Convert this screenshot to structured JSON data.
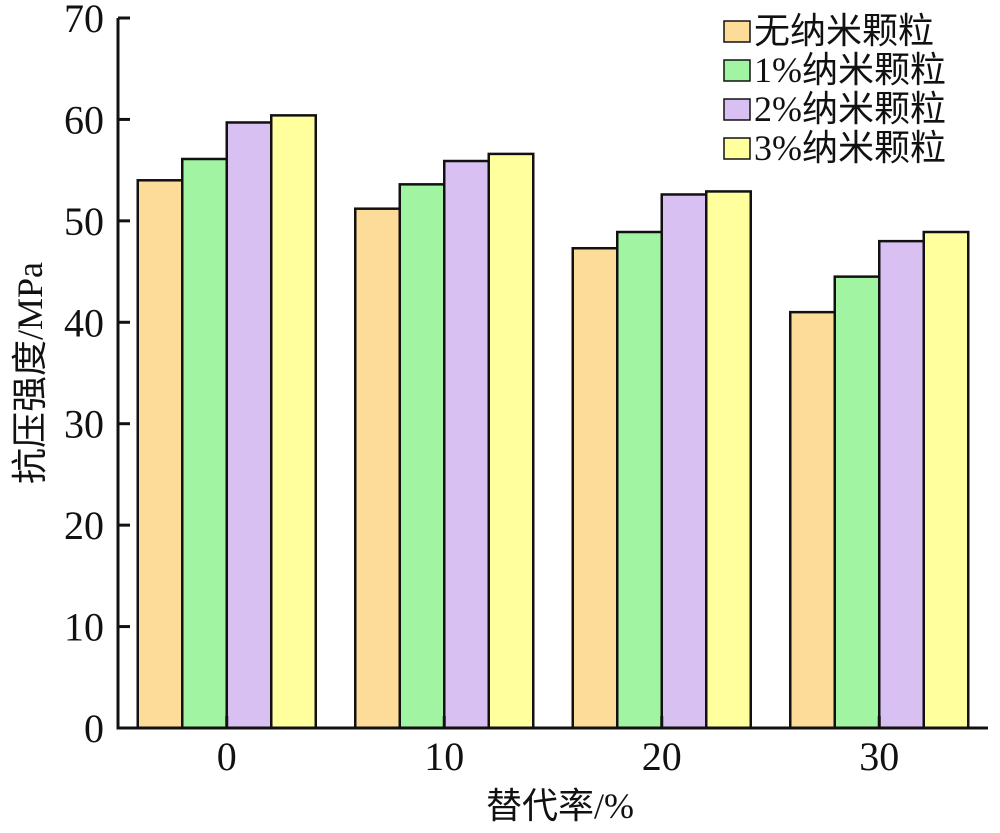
{
  "chart_data": {
    "type": "bar",
    "title": "",
    "xlabel": "替代率/%",
    "ylabel": "抗压强度/MPa",
    "categories": [
      "0",
      "10",
      "20",
      "30"
    ],
    "ylim": [
      0,
      70
    ],
    "yticks": [
      "0",
      "10",
      "20",
      "30",
      "40",
      "50",
      "60",
      "70"
    ],
    "grid": false,
    "legend_position": "top-right",
    "series": [
      {
        "name": "无纳米颗粒",
        "color": "#fcdc98",
        "values": [
          54.0,
          51.2,
          47.3,
          41.0
        ]
      },
      {
        "name": "1%纳米颗粒",
        "color": "#a1f4a1",
        "values": [
          56.1,
          53.6,
          48.9,
          44.5
        ]
      },
      {
        "name": "2%纳米颗粒",
        "color": "#d9c0f2",
        "values": [
          59.7,
          55.9,
          52.6,
          48.0
        ]
      },
      {
        "name": "3%纳米颗粒",
        "color": "#ffff9e",
        "values": [
          60.4,
          56.6,
          52.9,
          48.9
        ]
      }
    ]
  }
}
